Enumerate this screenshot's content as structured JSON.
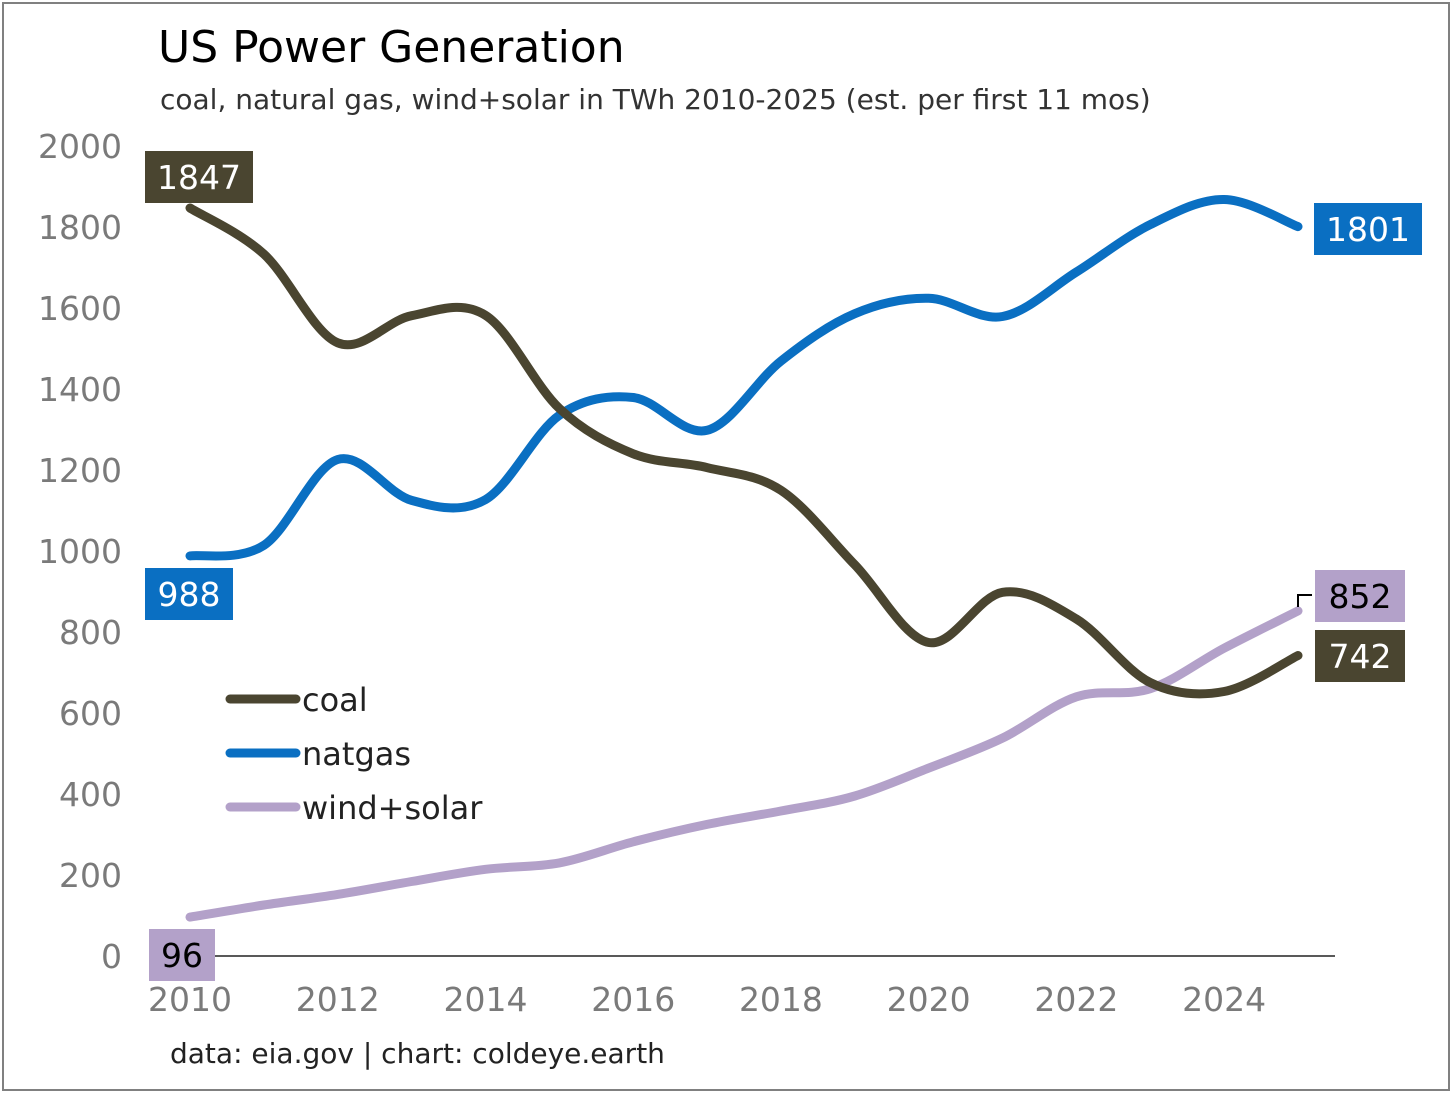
{
  "title": "US Power Generation",
  "subtitle": "coal, natural gas, wind+solar in TWh 2010-2025 (est. per first 11 mos)",
  "footer": "data: eia.gov | chart: coldeye.earth",
  "chart_data": {
    "type": "line",
    "title": "US Power Generation",
    "subtitle": "coal, natural gas, wind+solar in TWh 2010-2025 (est. per first 11 mos)",
    "xlabel": "",
    "ylabel": "",
    "x": [
      2010,
      2011,
      2012,
      2013,
      2014,
      2015,
      2016,
      2017,
      2018,
      2019,
      2020,
      2021,
      2022,
      2023,
      2024,
      2025
    ],
    "xlim": [
      2010,
      2025
    ],
    "ylim": [
      0,
      2000
    ],
    "x_ticks": [
      2010,
      2012,
      2014,
      2016,
      2018,
      2020,
      2022,
      2024
    ],
    "y_ticks": [
      0,
      200,
      400,
      600,
      800,
      1000,
      1200,
      1400,
      1600,
      1800,
      2000
    ],
    "grid": false,
    "legend_position": "left-middle",
    "series": [
      {
        "name": "coal",
        "color": "#4a4530",
        "values": [
          1847,
          1733,
          1514,
          1581,
          1582,
          1352,
          1240,
          1206,
          1150,
          966,
          774,
          898,
          832,
          675,
          653,
          742
        ],
        "end_labels": {
          "start": "1847",
          "end": "742"
        }
      },
      {
        "name": "natgas",
        "color": "#0a6fc2",
        "values": [
          988,
          1014,
          1226,
          1125,
          1127,
          1335,
          1379,
          1298,
          1469,
          1586,
          1624,
          1579,
          1689,
          1806,
          1868,
          1801
        ],
        "end_labels": {
          "start": "988",
          "end": "1801"
        }
      },
      {
        "name": "wind+solar",
        "color": "#b3a1c9",
        "values": [
          96,
          126,
          152,
          184,
          214,
          230,
          282,
          325,
          358,
          395,
          464,
          538,
          640,
          660,
          760,
          852
        ],
        "end_labels": {
          "start": "96",
          "end": "852"
        }
      }
    ]
  }
}
